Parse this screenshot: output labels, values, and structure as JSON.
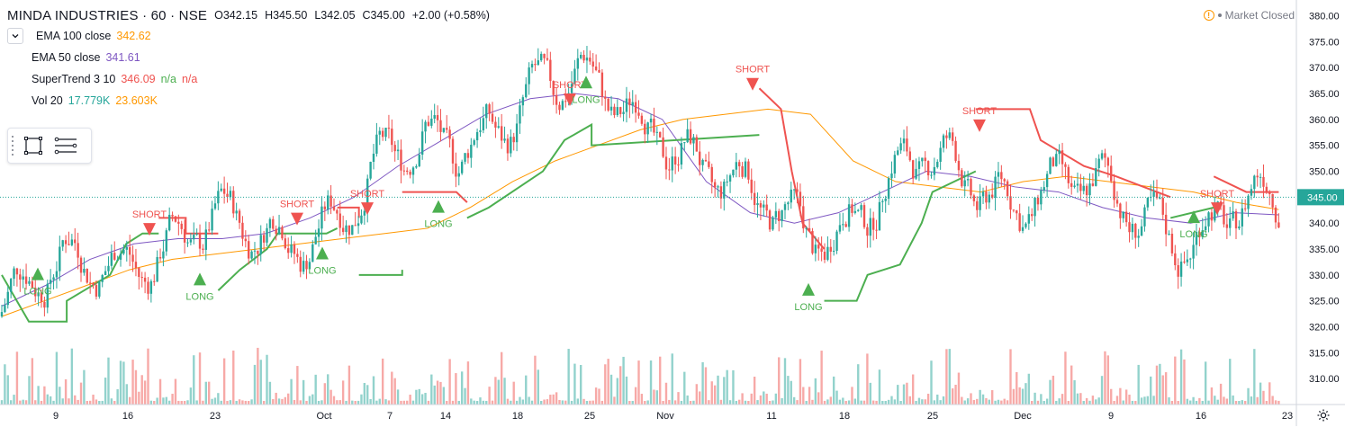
{
  "header": {
    "symbol_title": "MINDA INDUSTRIES · 60 · NSE",
    "open": "O342.15",
    "high": "H345.50",
    "low": "L342.05",
    "close": "C345.00",
    "change": "+2.00 (+0.58%)"
  },
  "indicators": [
    {
      "name": "EMA 100 close",
      "value": "342.62",
      "value_color": "#ff9800"
    },
    {
      "name": "EMA 50 close",
      "value": "341.61",
      "value_color": "#7e57c2"
    },
    {
      "name": "SuperTrend 3 10",
      "value": "346.09",
      "value_color": "#ef5350",
      "extra1": "n/a",
      "extra1_color": "#4caf50",
      "extra2": "n/a",
      "extra2_color": "#ef5350"
    },
    {
      "name": "Vol 20",
      "value": "17.779K",
      "value_color": "#26a69a",
      "extra1": "23.603K",
      "extra1_color": "#ff9800"
    }
  ],
  "status": {
    "market": "Market Closed"
  },
  "icons": {
    "collapse": "chevron-down-icon",
    "rect_tool": "rectangle-tool-icon",
    "lines_tool": "horizontal-lines-icon",
    "alert": "alert-icon",
    "settings": "gear-icon"
  },
  "colors": {
    "up": "#26a69a",
    "down": "#ef5350",
    "ema100": "#ff9800",
    "ema50": "#7e57c2",
    "st_long": "#4caf50",
    "st_short": "#ef5350",
    "price_line": "#26a69a"
  },
  "chart_data": {
    "type": "candlestick",
    "title": "MINDA INDUSTRIES · 60 · NSE",
    "ylim": [
      305,
      382
    ],
    "y_ticks": [
      "310.00",
      "315.00",
      "320.00",
      "325.00",
      "330.00",
      "335.00",
      "340.00",
      "345.00",
      "350.00",
      "355.00",
      "360.00",
      "365.00",
      "370.00",
      "375.00",
      "380.00"
    ],
    "x_ticks": [
      "9",
      "16",
      "23",
      "Oct",
      "7",
      "14",
      "18",
      "25",
      "Nov",
      "11",
      "18",
      "25",
      "Dec",
      "9",
      "16",
      "23"
    ],
    "last_price": "345.00",
    "grid": false,
    "signals": [
      {
        "label": "LONG",
        "x": "9",
        "price": 329
      },
      {
        "label": "SHORT",
        "x": "16",
        "price": 340
      },
      {
        "label": "LONG",
        "x": "23",
        "price": 328
      },
      {
        "label": "SHORT",
        "x": "Oct",
        "price": 342
      },
      {
        "label": "LONG",
        "x": "Oct",
        "price": 333
      },
      {
        "label": "SHORT",
        "x": "7",
        "price": 344
      },
      {
        "label": "LONG",
        "x": "14",
        "price": 342
      },
      {
        "label": "SHORT",
        "x": "25",
        "price": 365
      },
      {
        "label": "LONG",
        "x": "25",
        "price": 366
      },
      {
        "label": "SHORT",
        "x": "11",
        "price": 368
      },
      {
        "label": "LONG",
        "x": "18",
        "price": 326
      },
      {
        "label": "SHORT",
        "x": "25",
        "price": 360
      },
      {
        "label": "LONG",
        "x": "16",
        "price": 340
      },
      {
        "label": "SHORT",
        "x": "16",
        "price": 344
      }
    ],
    "ema_100": [
      322,
      325,
      328,
      331,
      333,
      334,
      335,
      336,
      337,
      338,
      339,
      343,
      348,
      352,
      355,
      358,
      360,
      361,
      362,
      361,
      352,
      348,
      347,
      346,
      348,
      349,
      348,
      347,
      346,
      344,
      342.6
    ],
    "ema_50": [
      324,
      328,
      333,
      336,
      337,
      337,
      338,
      341,
      345,
      351,
      356,
      361,
      364,
      365,
      364,
      360,
      348,
      342,
      340,
      342,
      346,
      350,
      349,
      347,
      346,
      343,
      341,
      340,
      342,
      341.6
    ],
    "supertrend": [
      {
        "dir": "long",
        "points": [
          [
            0,
            330
          ],
          [
            0.025,
            321
          ],
          [
            0.06,
            321
          ],
          [
            0.06,
            325
          ],
          [
            0.1,
            330
          ],
          [
            0.115,
            336
          ],
          [
            0.13,
            338
          ],
          [
            0.145,
            338
          ]
        ]
      },
      {
        "dir": "short",
        "points": [
          [
            0.145,
            341
          ],
          [
            0.17,
            341
          ],
          [
            0.17,
            338
          ],
          [
            0.2,
            338
          ]
        ]
      },
      {
        "dir": "long",
        "points": [
          [
            0.2,
            327
          ],
          [
            0.22,
            331
          ],
          [
            0.245,
            335
          ],
          [
            0.255,
            338
          ],
          [
            0.3,
            338
          ],
          [
            0.31,
            339
          ]
        ]
      },
      {
        "dir": "short",
        "points": [
          [
            0.31,
            343
          ],
          [
            0.33,
            343
          ],
          [
            0.33,
            341
          ]
        ]
      },
      {
        "dir": "long",
        "points": [
          [
            0.33,
            330
          ],
          [
            0.37,
            330
          ],
          [
            0.37,
            331
          ]
        ]
      },
      {
        "dir": "short",
        "points": [
          [
            0.37,
            346
          ],
          [
            0.42,
            346
          ],
          [
            0.43,
            344
          ]
        ]
      },
      {
        "dir": "long",
        "points": [
          [
            0.43,
            341
          ],
          [
            0.45,
            343
          ],
          [
            0.5,
            350
          ],
          [
            0.52,
            356
          ],
          [
            0.545,
            359
          ],
          [
            0.545,
            355
          ],
          [
            0.7,
            357
          ]
        ]
      },
      {
        "dir": "short",
        "points": [
          [
            0.7,
            366
          ],
          [
            0.72,
            362
          ],
          [
            0.73,
            350
          ],
          [
            0.74,
            340
          ],
          [
            0.76,
            335
          ]
        ]
      },
      {
        "dir": "long",
        "points": [
          [
            0.76,
            325
          ],
          [
            0.79,
            325
          ],
          [
            0.8,
            330
          ],
          [
            0.83,
            332
          ],
          [
            0.85,
            340
          ],
          [
            0.86,
            346
          ],
          [
            0.9,
            350
          ]
        ]
      },
      {
        "dir": "short",
        "points": [
          [
            0.9,
            362
          ],
          [
            0.95,
            362
          ],
          [
            0.96,
            356
          ],
          [
            1.0,
            351
          ],
          [
            1.03,
            349
          ],
          [
            1.08,
            345
          ]
        ]
      },
      {
        "dir": "long",
        "points": [
          [
            1.08,
            341
          ],
          [
            1.12,
            343
          ]
        ]
      },
      {
        "dir": "short",
        "points": [
          [
            1.12,
            349
          ],
          [
            1.15,
            346
          ],
          [
            1.18,
            346
          ]
        ]
      }
    ]
  }
}
